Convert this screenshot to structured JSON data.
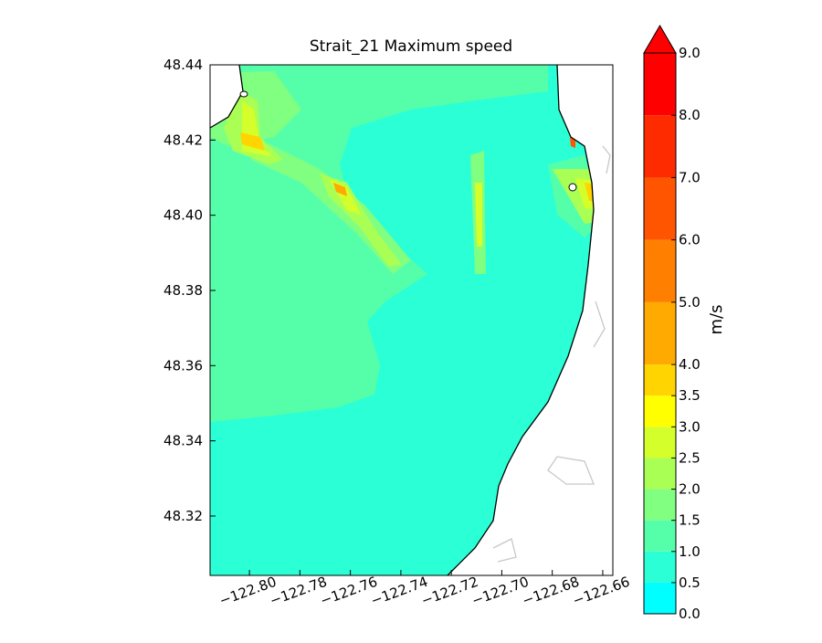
{
  "chart_data": {
    "type": "filled-contour",
    "title": "Strait_21 Maximum speed",
    "xlim": [
      -122.8156,
      -122.656
    ],
    "xticks": [
      {
        "value": -122.8,
        "label": "−122.80"
      },
      {
        "value": -122.78,
        "label": "−122.78"
      },
      {
        "value": -122.76,
        "label": "−122.76"
      },
      {
        "value": -122.74,
        "label": "−122.74"
      },
      {
        "value": -122.72,
        "label": "−122.72"
      },
      {
        "value": -122.7,
        "label": "−122.70"
      },
      {
        "value": -122.68,
        "label": "−122.68"
      },
      {
        "value": -122.66,
        "label": "−122.66"
      }
    ],
    "ylim": [
      48.3042,
      48.44
    ],
    "yticks": [
      48.32,
      48.34,
      48.36,
      48.38,
      {
        "value": 48.4,
        "label": "48.40"
      },
      48.42,
      48.44
    ],
    "colorbar": {
      "label": "m/s",
      "extend": "max",
      "levels": [
        {
          "value": 0,
          "label": "0.0"
        },
        0.5,
        {
          "value": 1,
          "label": "1.0"
        },
        1.5,
        {
          "value": 2,
          "label": "2.0"
        },
        2.5,
        {
          "value": 3,
          "label": "3.0"
        },
        3.5,
        {
          "value": 4,
          "label": "4.0"
        },
        {
          "value": 5,
          "label": "5.0"
        },
        {
          "value": 6,
          "label": "6.0"
        },
        {
          "value": 7,
          "label": "7.0"
        },
        {
          "value": 8,
          "label": "8.0"
        },
        {
          "value": 9,
          "label": "9.0"
        }
      ],
      "colors": [
        "#00ffff",
        "#2affd5",
        "#55ffaa",
        "#80ff80",
        "#aaff55",
        "#d4ff2b",
        "#ffff00",
        "#ffd400",
        "#ffaa00",
        "#ff8000",
        "#ff5500",
        "#ff2b00",
        "#ff0000"
      ]
    }
  }
}
